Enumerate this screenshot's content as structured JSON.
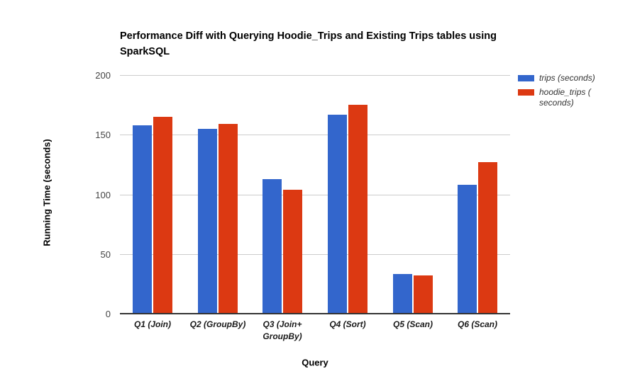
{
  "chart": {
    "title": "Performance Diff with Querying Hoodie_Trips and Existing Trips tables using SparkSQL",
    "x_axis_title": "Query",
    "y_axis_title": "Running Time (seconds)"
  },
  "chart_data": {
    "type": "bar",
    "title": "Performance Diff with Querying Hoodie_Trips and Existing Trips tables using SparkSQL",
    "xlabel": "Query",
    "ylabel": "Running Time (seconds)",
    "categories": [
      "Q1 (Join)",
      "Q2 (GroupBy)",
      "Q3 (Join+ GroupBy)",
      "Q4 (Sort)",
      "Q5 (Scan)",
      "Q6 (Scan)"
    ],
    "series": [
      {
        "name": "trips (seconds)",
        "color": "#3366CC",
        "values": [
          158,
          155,
          113,
          167,
          33,
          108
        ]
      },
      {
        "name": "hoodie_trips (seconds)",
        "color": "#DC3912",
        "values": [
          165,
          159,
          104,
          175,
          32,
          127
        ]
      }
    ],
    "ylim": [
      0,
      200
    ],
    "ytick_step": 50,
    "yticks": [
      0,
      50,
      100,
      150,
      200
    ],
    "grid": true,
    "legend_position": "right"
  },
  "legend": {
    "items": [
      {
        "label": "trips (seconds)",
        "color": "#3366CC"
      },
      {
        "label": "hoodie_trips (\nseconds)",
        "color": "#DC3912"
      }
    ]
  },
  "colors": {
    "gridline": "#cccccc",
    "axis_line": "#333333",
    "background": "#ffffff"
  }
}
